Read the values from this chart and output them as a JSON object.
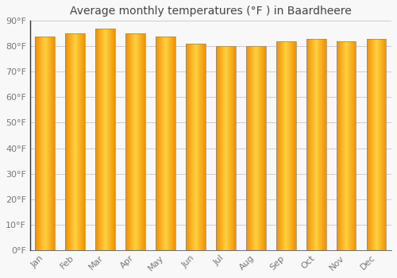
{
  "title": "Average monthly temperatures (°F ) in Baardheere",
  "months": [
    "Jan",
    "Feb",
    "Mar",
    "Apr",
    "May",
    "Jun",
    "Jul",
    "Aug",
    "Sep",
    "Oct",
    "Nov",
    "Dec"
  ],
  "values": [
    84,
    85,
    87,
    85,
    84,
    81,
    80,
    80,
    82,
    83,
    82,
    83
  ],
  "bar_color_center": "#FFD040",
  "bar_color_edge": "#F09000",
  "bar_outline_color": "#888888",
  "background_color": "#F8F8F8",
  "grid_color": "#CCCCCC",
  "ylim": [
    0,
    90
  ],
  "yticks": [
    0,
    10,
    20,
    30,
    40,
    50,
    60,
    70,
    80,
    90
  ],
  "ytick_labels": [
    "0°F",
    "10°F",
    "20°F",
    "30°F",
    "40°F",
    "50°F",
    "60°F",
    "70°F",
    "80°F",
    "90°F"
  ],
  "title_fontsize": 10,
  "tick_fontsize": 8,
  "title_color": "#444444",
  "tick_color": "#777777",
  "font_family": "DejaVu Sans",
  "bar_width": 0.65,
  "spine_color": "#333333"
}
